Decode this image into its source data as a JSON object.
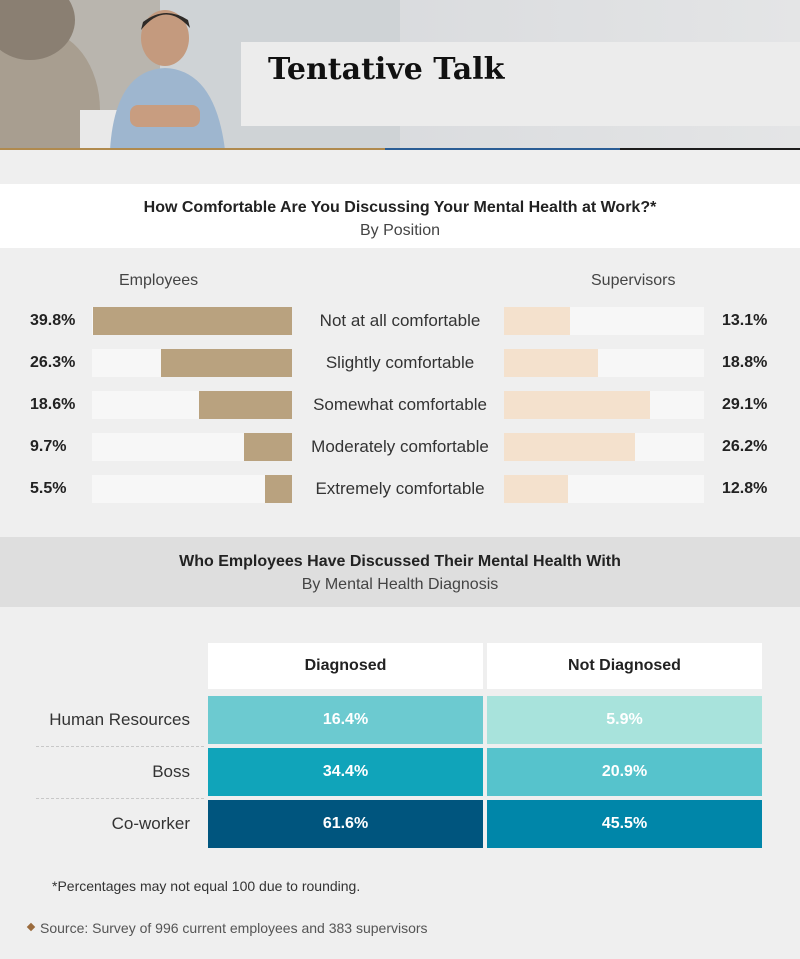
{
  "header": {
    "title": "Tentative Talk",
    "stripe_colors": [
      "#b08a4e",
      "#2a5d95",
      "#1c1c1c"
    ]
  },
  "section1": {
    "title": "How Comfortable Are You Discussing Your Mental Health at Work?*",
    "subtitle": "By Position",
    "left_label": "Employees",
    "right_label": "Supervisors"
  },
  "section2": {
    "title": "Who Employees Have Discussed Their Mental Health With",
    "subtitle": "By Mental Health Diagnosis"
  },
  "chart_data": [
    {
      "type": "bar",
      "orientation": "horizontal-diverging",
      "categories": [
        "Not at all comfortable",
        "Slightly comfortable",
        "Somewhat comfortable",
        "Moderately comfortable",
        "Extremely comfortable"
      ],
      "series": [
        {
          "name": "Employees",
          "values": [
            39.8,
            26.3,
            18.6,
            9.7,
            5.5
          ],
          "labels": [
            "39.8%",
            "26.3%",
            "18.6%",
            "9.7%",
            "5.5%"
          ],
          "color": "#b9a27f"
        },
        {
          "name": "Supervisors",
          "values": [
            13.1,
            18.8,
            29.1,
            26.2,
            12.8
          ],
          "labels": [
            "13.1%",
            "18.8%",
            "29.1%",
            "26.2%",
            "12.8%"
          ],
          "color": "#f4e1cd"
        }
      ],
      "xlim": [
        0,
        40
      ]
    },
    {
      "type": "heatmap",
      "columns": [
        "Diagnosed",
        "Not Diagnosed"
      ],
      "rows": [
        "Human Resources",
        "Boss",
        "Co-worker"
      ],
      "values": [
        [
          16.4,
          5.9
        ],
        [
          34.4,
          20.9
        ],
        [
          61.6,
          45.5
        ]
      ],
      "labels": [
        [
          "16.4%",
          "5.9%"
        ],
        [
          "34.4%",
          "20.9%"
        ],
        [
          "61.6%",
          "45.5%"
        ]
      ],
      "colors": [
        [
          "#6ccad0",
          "#a8e3dc"
        ],
        [
          "#10a4ba",
          "#56c3cc"
        ],
        [
          "#00557e",
          "#0086a9"
        ]
      ]
    }
  ],
  "footnotes": {
    "note": "*Percentages may not equal 100 due to rounding.",
    "source": "Source: Survey of 996 current employees and 383 supervisors"
  }
}
